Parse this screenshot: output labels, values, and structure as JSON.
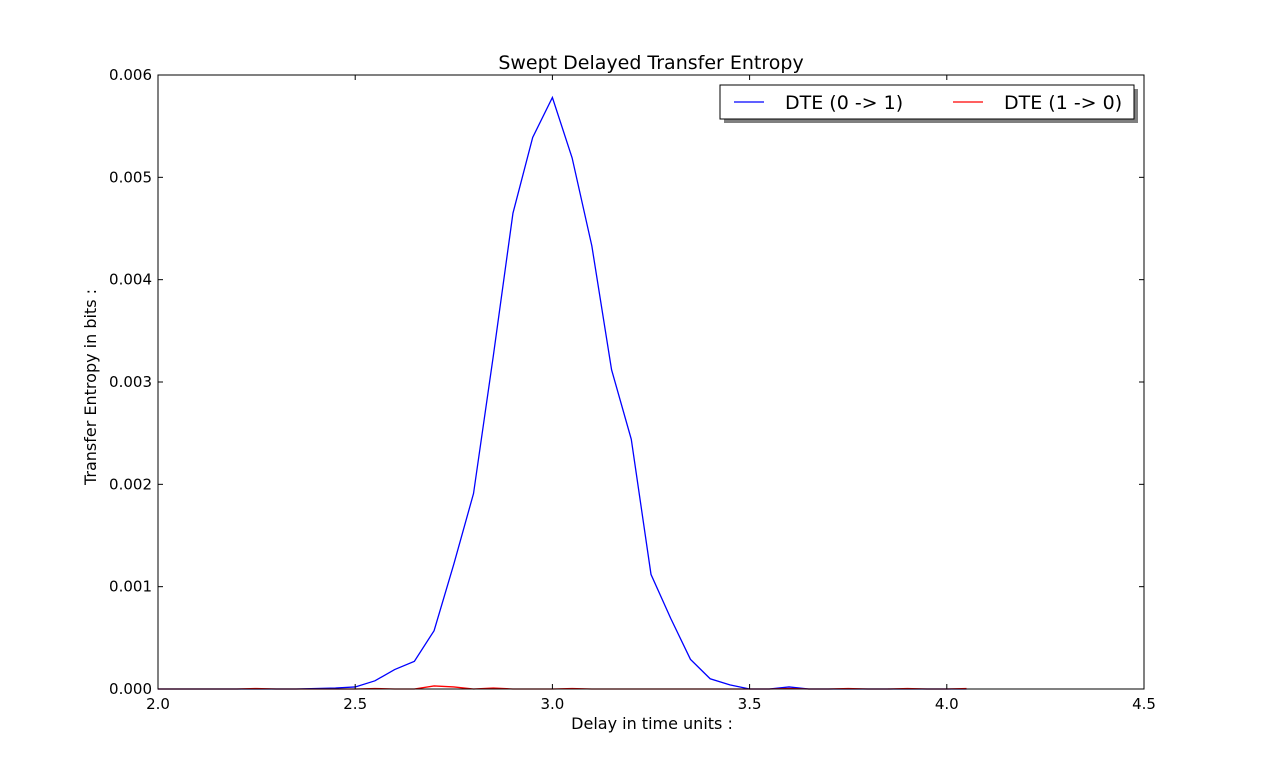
{
  "chart_data": {
    "type": "line",
    "title": "Swept Delayed Transfer Entropy",
    "xlabel": "Delay in time units :",
    "ylabel": "Transfer Entropy in bits :",
    "xlim": [
      2.0,
      4.5
    ],
    "ylim": [
      0.0,
      0.006
    ],
    "xticks": [
      "2.0",
      "2.5",
      "3.0",
      "3.5",
      "4.0",
      "4.5"
    ],
    "yticks": [
      "0.000",
      "0.001",
      "0.002",
      "0.003",
      "0.004",
      "0.005",
      "0.006"
    ],
    "grid": false,
    "legend_position": "top-right",
    "series": [
      {
        "name": "DTE (0 -> 1)",
        "color": "#0000ff",
        "x": [
          2.0,
          2.05,
          2.1,
          2.15,
          2.2,
          2.25,
          2.3,
          2.35,
          2.4,
          2.45,
          2.5,
          2.55,
          2.6,
          2.65,
          2.7,
          2.75,
          2.8,
          2.85,
          2.9,
          2.95,
          3.0,
          3.05,
          3.1,
          3.15,
          3.2,
          3.25,
          3.3,
          3.35,
          3.4,
          3.45,
          3.5,
          3.55,
          3.6,
          3.65,
          3.7,
          3.75,
          3.8,
          3.85,
          3.9,
          3.95,
          4.0,
          4.05
        ],
        "y": [
          0.0,
          0.0,
          0.0,
          0.0,
          0.0,
          0.0,
          0.0,
          0.0,
          5e-06,
          1e-05,
          2e-05,
          8e-05,
          0.00019,
          0.00027,
          0.00057,
          0.00122,
          0.00191,
          0.00325,
          0.00465,
          0.00539,
          0.00578,
          0.00519,
          0.00433,
          0.00312,
          0.00244,
          0.00112,
          0.00069,
          0.00029,
          0.0001,
          4e-05,
          0.0,
          0.0,
          2e-05,
          0.0,
          0.0,
          0.0,
          0.0,
          0.0,
          0.0,
          0.0,
          0.0,
          0.0
        ]
      },
      {
        "name": "DTE (1 -> 0)",
        "color": "#ff0000",
        "x": [
          2.0,
          2.05,
          2.1,
          2.15,
          2.2,
          2.25,
          2.3,
          2.35,
          2.4,
          2.45,
          2.5,
          2.55,
          2.6,
          2.65,
          2.7,
          2.75,
          2.8,
          2.85,
          2.9,
          2.95,
          3.0,
          3.05,
          3.1,
          3.15,
          3.2,
          3.25,
          3.3,
          3.35,
          3.4,
          3.45,
          3.5,
          3.55,
          3.6,
          3.65,
          3.7,
          3.75,
          3.8,
          3.85,
          3.9,
          3.95,
          4.0,
          4.05
        ],
        "y": [
          0.0,
          0.0,
          0.0,
          0.0,
          0.0,
          5e-06,
          0.0,
          0.0,
          0.0,
          0.0,
          0.0,
          5e-06,
          0.0,
          0.0,
          3e-05,
          2e-05,
          0.0,
          1e-05,
          0.0,
          0.0,
          0.0,
          5e-06,
          0.0,
          0.0,
          0.0,
          0.0,
          0.0,
          0.0,
          0.0,
          0.0,
          0.0,
          0.0,
          5e-06,
          0.0,
          0.0,
          5e-06,
          0.0,
          0.0,
          5e-06,
          0.0,
          0.0,
          5e-06
        ]
      }
    ]
  }
}
